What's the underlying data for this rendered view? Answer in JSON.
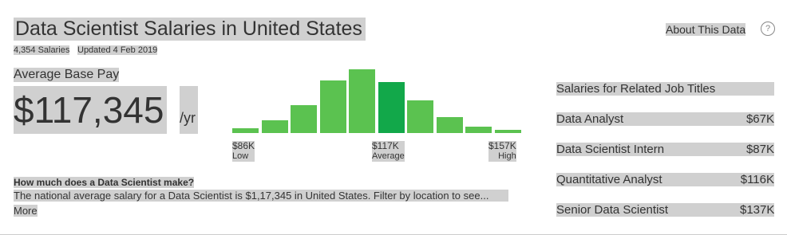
{
  "header": {
    "title": "Data Scientist Salaries in United States",
    "salaries_count": "4,354 Salaries",
    "updated": "Updated 4 Feb 2019",
    "about": "About This Data",
    "help": "?"
  },
  "pay": {
    "label": "Average Base Pay",
    "amount": "$117,345",
    "unit": "/yr"
  },
  "histogram": {
    "values": [
      6,
      16,
      35,
      66,
      80,
      64,
      41,
      20,
      8,
      4
    ],
    "color": "#5bc250",
    "highlight_color": "#12a84a",
    "highlight_index": 5,
    "labels": [
      {
        "value": "$86K",
        "caption": "Low"
      },
      {
        "value": "$117K",
        "caption": "Average"
      },
      {
        "value": "$157K",
        "caption": "High"
      }
    ]
  },
  "info": {
    "question": "How much does a Data Scientist make?",
    "text": "The national average salary for a Data Scientist is $1,17,345 in United States. Filter by location to see...",
    "more": "More"
  },
  "related": {
    "title": "Salaries for Related Job Titles",
    "rows": [
      {
        "title": "Data Analyst",
        "salary": "$67K"
      },
      {
        "title": "Data Scientist Intern",
        "salary": "$87K"
      },
      {
        "title": "Quantitative Analyst",
        "salary": "$116K"
      },
      {
        "title": "Senior Data Scientist",
        "salary": "$137K"
      }
    ]
  }
}
